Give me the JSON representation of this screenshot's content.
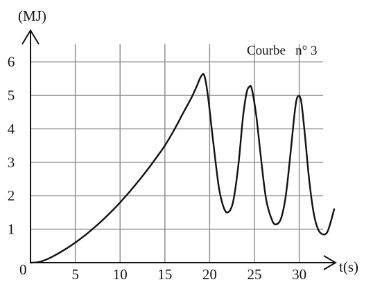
{
  "chart_data": {
    "type": "line",
    "title": "Courbe   n° 3",
    "ylabel": "(MJ)",
    "xlabel": "t(s)",
    "origin_label": "0",
    "xlim": [
      0,
      34
    ],
    "ylim": [
      0,
      6.5
    ],
    "xticks": [
      5,
      10,
      15,
      20,
      25,
      30
    ],
    "yticks": [
      1,
      2,
      3,
      4,
      5,
      6
    ],
    "grid": true,
    "series": [
      {
        "x": [
          0,
          1,
          2,
          3,
          4,
          5,
          6,
          7,
          8,
          9,
          10,
          11,
          12,
          13,
          14,
          15,
          16,
          17,
          18,
          18.6,
          19,
          19.4,
          19.8,
          20.4,
          21,
          21.5,
          22,
          22.6,
          23.2,
          23.7,
          24.1,
          24.4,
          24.7,
          25.2,
          25.7,
          26.3,
          27,
          27.5,
          28,
          28.5,
          29,
          29.5,
          29.8,
          30.2,
          30.6,
          31.1,
          31.6,
          32.1,
          32.6,
          33.1,
          33.5,
          33.9
        ],
        "y": [
          0,
          0.02,
          0.12,
          0.26,
          0.42,
          0.6,
          0.8,
          1.02,
          1.26,
          1.52,
          1.8,
          2.1,
          2.42,
          2.76,
          3.12,
          3.5,
          3.95,
          4.45,
          4.95,
          5.3,
          5.55,
          5.6,
          5.0,
          3.6,
          2.3,
          1.7,
          1.5,
          1.8,
          2.9,
          4.3,
          5.05,
          5.25,
          5.2,
          4.4,
          3.2,
          1.9,
          1.25,
          1.15,
          1.35,
          2.0,
          3.2,
          4.5,
          4.95,
          4.85,
          3.9,
          2.5,
          1.5,
          1.0,
          0.85,
          0.9,
          1.2,
          1.6
        ]
      }
    ]
  }
}
